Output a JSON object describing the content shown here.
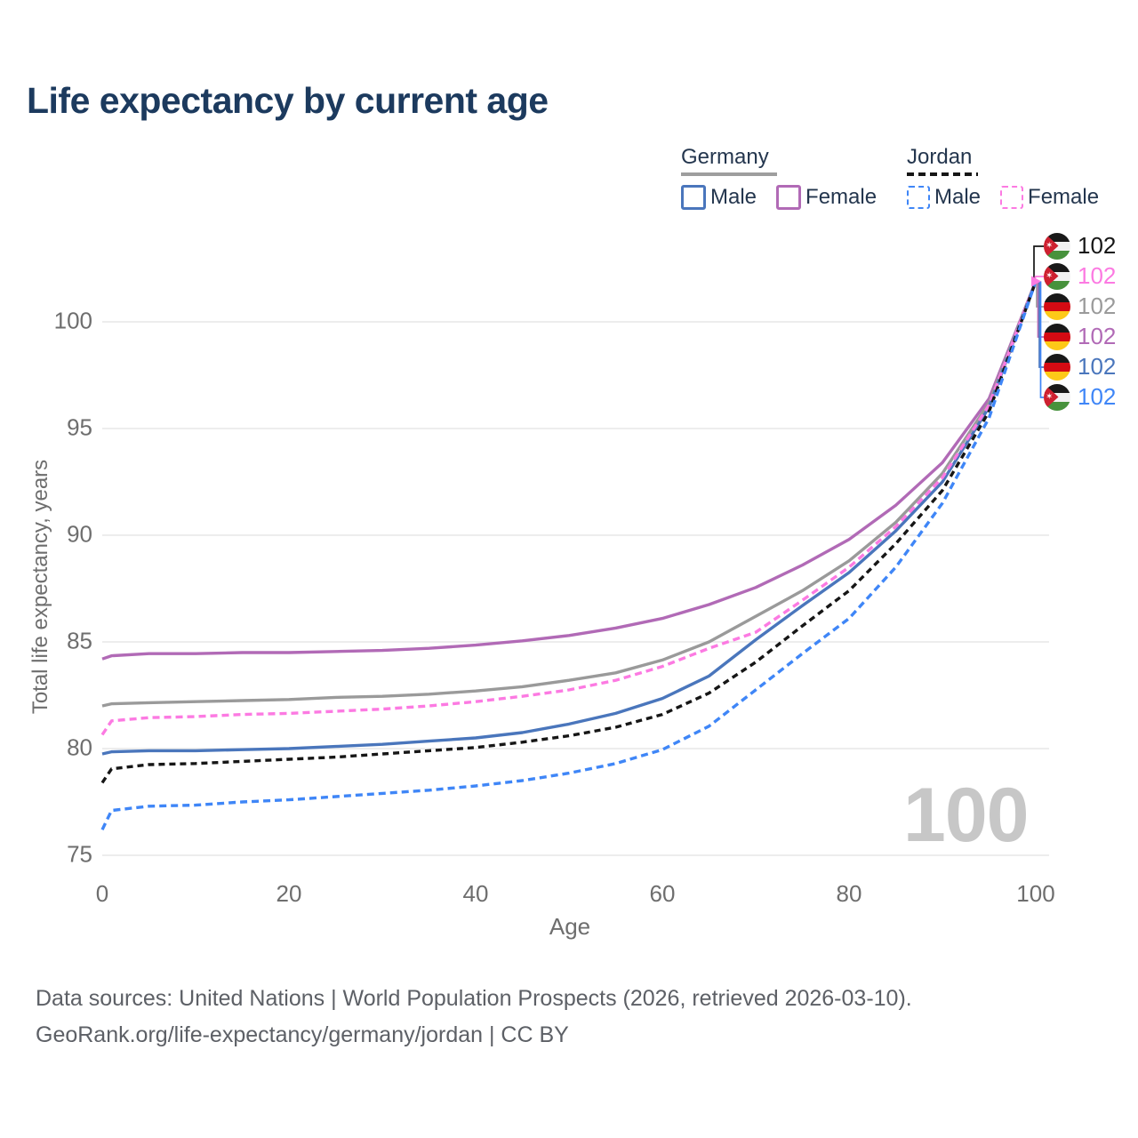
{
  "title": "Life expectancy by current age",
  "legend": {
    "groups": [
      {
        "country": "Germany",
        "line_style": "solid",
        "underline_color": "#9e9e9e",
        "items": [
          {
            "label": "Male",
            "color": "#4a76bc",
            "dashed": false
          },
          {
            "label": "Female",
            "color": "#b16ab6",
            "dashed": false
          }
        ]
      },
      {
        "country": "Jordan",
        "line_style": "dashed",
        "underline_color": "#161616",
        "items": [
          {
            "label": "Male",
            "color": "#3f86f7",
            "dashed": true
          },
          {
            "label": "Female",
            "color": "#fc7ae2",
            "dashed": true
          }
        ]
      }
    ]
  },
  "chart_data": {
    "type": "line",
    "title": "Life expectancy by current age",
    "xlabel": "Age",
    "ylabel": "Total life expectancy, years",
    "xlim": [
      0,
      100
    ],
    "ylim": [
      74,
      103
    ],
    "xticks": [
      0,
      20,
      40,
      60,
      80,
      100
    ],
    "yticks": [
      75,
      80,
      85,
      90,
      95,
      100
    ],
    "grid": "horizontal-only",
    "legend_position": "top-right",
    "watermark": "100",
    "x": [
      0,
      1,
      5,
      10,
      15,
      20,
      25,
      30,
      35,
      40,
      45,
      50,
      55,
      60,
      65,
      70,
      75,
      80,
      85,
      90,
      95,
      100
    ],
    "series": [
      {
        "name": "Germany Female",
        "country": "Germany",
        "sex": "Female",
        "color": "#b16ab6",
        "dash": null,
        "values": [
          84.2,
          84.35,
          84.45,
          84.45,
          84.5,
          84.5,
          84.55,
          84.6,
          84.7,
          84.85,
          85.05,
          85.3,
          85.65,
          86.1,
          86.75,
          87.55,
          88.6,
          89.8,
          91.4,
          93.4,
          96.4,
          101.9
        ]
      },
      {
        "name": "Germany",
        "country": "Germany",
        "sex": "Both",
        "color": "#9a9a9a",
        "dash": null,
        "values": [
          82.0,
          82.1,
          82.15,
          82.2,
          82.25,
          82.3,
          82.4,
          82.45,
          82.55,
          82.7,
          82.9,
          83.2,
          83.55,
          84.15,
          85.0,
          86.2,
          87.4,
          88.8,
          90.6,
          92.9,
          96.2,
          101.9
        ]
      },
      {
        "name": "Germany Male",
        "country": "Germany",
        "sex": "Male",
        "color": "#4a76bc",
        "dash": null,
        "values": [
          79.75,
          79.85,
          79.9,
          79.9,
          79.95,
          80.0,
          80.1,
          80.2,
          80.35,
          80.5,
          80.75,
          81.15,
          81.65,
          82.35,
          83.4,
          85.1,
          86.7,
          88.25,
          90.2,
          92.5,
          96.0,
          101.9
        ]
      },
      {
        "name": "Jordan Female",
        "country": "Jordan",
        "sex": "Female",
        "color": "#fc7ae2",
        "dash": "8 5",
        "values": [
          80.65,
          81.3,
          81.45,
          81.5,
          81.6,
          81.65,
          81.75,
          81.85,
          82.0,
          82.2,
          82.45,
          82.75,
          83.2,
          83.85,
          84.7,
          85.45,
          86.95,
          88.5,
          90.4,
          92.7,
          96.1,
          101.9
        ]
      },
      {
        "name": "Jordan",
        "country": "Jordan",
        "sex": "Both",
        "color": "#161616",
        "dash": "7 5",
        "values": [
          78.4,
          79.05,
          79.25,
          79.3,
          79.4,
          79.5,
          79.6,
          79.75,
          79.9,
          80.05,
          80.3,
          80.6,
          81.0,
          81.6,
          82.6,
          84.05,
          85.75,
          87.4,
          89.6,
          92.1,
          95.8,
          101.9
        ]
      },
      {
        "name": "Jordan Male",
        "country": "Jordan",
        "sex": "Male",
        "color": "#3f86f7",
        "dash": "8 5",
        "values": [
          76.2,
          77.1,
          77.3,
          77.35,
          77.5,
          77.6,
          77.75,
          77.9,
          78.05,
          78.25,
          78.5,
          78.85,
          79.3,
          79.95,
          81.05,
          82.75,
          84.45,
          86.1,
          88.5,
          91.5,
          95.5,
          101.9
        ]
      }
    ],
    "end_labels": [
      {
        "series": "Jordan",
        "flag": "jordan",
        "value": "102",
        "color": "#161616"
      },
      {
        "series": "Jordan Female",
        "flag": "jordan",
        "value": "102",
        "color": "#fc7ae2"
      },
      {
        "series": "Germany",
        "flag": "germany",
        "value": "102",
        "color": "#9a9a9a"
      },
      {
        "series": "Germany Female",
        "flag": "germany",
        "value": "102",
        "color": "#b16ab6"
      },
      {
        "series": "Germany Male",
        "flag": "germany",
        "value": "102",
        "color": "#4a76bc"
      },
      {
        "series": "Jordan Male",
        "flag": "jordan",
        "value": "102",
        "color": "#3f86f7"
      }
    ]
  },
  "footer": {
    "line1": "Data sources: United Nations | World Population Prospects (2026, retrieved 2026-03-10).",
    "line2": "GeoRank.org/life-expectancy/germany/jordan | CC BY"
  }
}
